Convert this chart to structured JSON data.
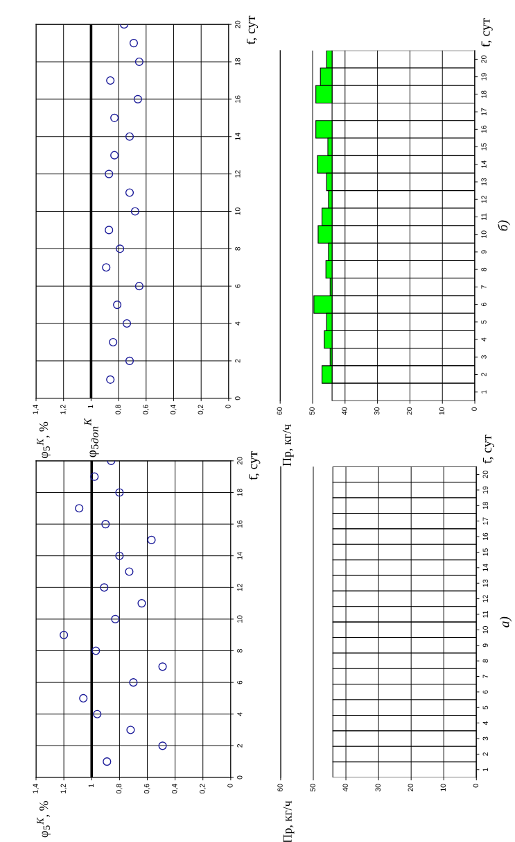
{
  "chart_data": [
    {
      "type": "scatter",
      "ylabel": "φ$_{5}$$^{К}$, %",
      "annotations": [
        "t̄, сут"
      ],
      "x": [
        0.86,
        0.72,
        0.84,
        0.74,
        0.81,
        0.65,
        0.89,
        0.79,
        0.87,
        0.68,
        0.72,
        0.87,
        0.83,
        0.72,
        0.83,
        0.66,
        0.86,
        0.65,
        0.69,
        0.76
      ],
      "values": [
        1,
        2,
        3,
        4,
        5,
        6,
        7,
        8,
        9,
        10,
        11,
        12,
        13,
        14,
        15,
        16,
        17,
        18,
        19,
        20
      ],
      "color": "#1a1a99",
      "marker": "circle",
      "xlim": [
        1.4,
        0
      ],
      "xticks": [
        {
          "value": 1.4,
          "label": "1,4"
        },
        {
          "value": 1.2,
          "label": "1,2"
        },
        1,
        {
          "value": 0.8,
          "label": "0,8"
        },
        {
          "value": 0.6,
          "label": "0,6"
        },
        {
          "value": 0.4,
          "label": "0,4"
        },
        {
          "value": 0.2,
          "label": "0,2"
        },
        0
      ],
      "ylim": [
        0,
        20
      ],
      "yticks": [
        0,
        2,
        4,
        6,
        8,
        10,
        12,
        14,
        16,
        18,
        20
      ],
      "grid": true,
      "ref_lines": [
        {
          "axis": "x",
          "value": 1,
          "color": "#000000"
        }
      ]
    },
    {
      "type": "bar",
      "orientation": "horizontal",
      "stacked": true,
      "ylabel": "Пр, кг/ч",
      "categories": [
        "20",
        "19",
        "18",
        "17",
        "16",
        "15",
        "14",
        "13",
        "12",
        "11",
        "10",
        "9",
        "8",
        "7",
        "6",
        "5",
        "4",
        "3",
        "2",
        "1"
      ],
      "series": [
        {
          "color": "#ffffff",
          "values": [
            44,
            44,
            44,
            44,
            44,
            44,
            44,
            44,
            44,
            44,
            44,
            44,
            44,
            44,
            44,
            44,
            44,
            44,
            44,
            44
          ]
        },
        {
          "color": "#00ff00",
          "values": [
            1.7,
            3.6,
            5.0,
            null,
            5.0,
            1.3,
            4.5,
            1.7,
            1.1,
            3.1,
            4.3,
            1.1,
            1.9,
            0.6,
            5.6,
            1.7,
            2.4,
            0.6,
            3.1,
            null
          ]
        }
      ],
      "xlim": [
        60,
        0
      ],
      "xticks": [
        0,
        10,
        20,
        30,
        40,
        50,
        60
      ],
      "grid": "x",
      "annotations": [
        "t̄, сут",
        "б)"
      ]
    },
    {
      "type": "scatter",
      "ylabel": "φ$_{5}$$^{К}$, %",
      "annotations": [
        "t̄, сут"
      ],
      "x": [
        0.89,
        0.49,
        0.72,
        0.96,
        1.06,
        0.7,
        0.49,
        0.97,
        1.2,
        0.83,
        0.64,
        0.91,
        0.73,
        0.8,
        0.57,
        0.9,
        1.09,
        0.8,
        0.98,
        0.86
      ],
      "values": [
        1,
        2,
        3,
        4,
        5,
        6,
        7,
        8,
        9,
        10,
        11,
        12,
        13,
        14,
        15,
        16,
        17,
        18,
        19,
        20
      ],
      "color": "#1a1a99",
      "marker": "circle",
      "xlim": [
        1.4,
        0
      ],
      "xticks": [
        {
          "value": 1.4,
          "label": "1,4"
        },
        {
          "value": 1.2,
          "label": "1,2"
        },
        1,
        {
          "value": 0.8,
          "label": "0,8"
        },
        {
          "value": 0.6,
          "label": "0,6"
        },
        {
          "value": 0.4,
          "label": "0,4"
        },
        {
          "value": 0.2,
          "label": "0,2"
        },
        0
      ],
      "ylim": [
        0,
        20
      ],
      "yticks": [
        0,
        2,
        4,
        6,
        8,
        10,
        12,
        14,
        16,
        18,
        20
      ],
      "grid": true,
      "ref_lines": [
        {
          "axis": "x",
          "value": 1,
          "color": "#000000",
          "label": "φ$_{5доп}$$^{К}$"
        }
      ]
    },
    {
      "type": "bar",
      "orientation": "horizontal",
      "stacked": true,
      "ylabel": "Пр, кг/ч",
      "categories": [
        "20",
        "19",
        "18",
        "17",
        "16",
        "15",
        "14",
        "13",
        "12",
        "11",
        "10",
        "9",
        "8",
        "7",
        "6",
        "5",
        "4",
        "3",
        "2",
        "1"
      ],
      "series": [
        {
          "color": "#ffffff",
          "values": [
            44,
            44,
            44,
            44,
            44,
            44,
            44,
            44,
            44,
            44,
            44,
            44,
            44,
            44,
            44,
            44,
            44,
            44,
            44,
            44
          ]
        }
      ],
      "xlim": [
        60,
        0
      ],
      "xticks": [
        0,
        10,
        20,
        30,
        40,
        50,
        60
      ],
      "grid": "x",
      "annotations": [
        "t̄, сут",
        "а)"
      ]
    }
  ]
}
